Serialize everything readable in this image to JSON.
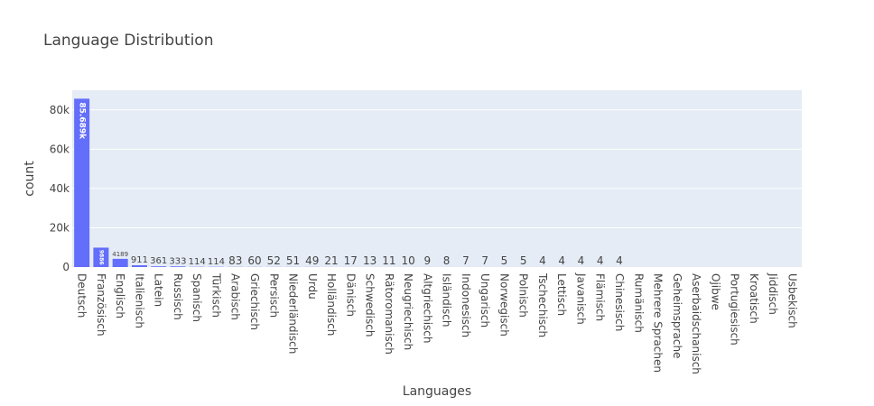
{
  "chart_data": {
    "type": "bar",
    "title": "Language Distribution",
    "xlabel": "Languages",
    "ylabel": "count",
    "ylim": [
      0,
      90000
    ],
    "yticks": [
      0,
      20000,
      40000,
      60000,
      80000
    ],
    "ytick_labels": [
      "0",
      "20k",
      "40k",
      "60k",
      "80k"
    ],
    "grid": true,
    "colors": {
      "bar": "#636efa",
      "plot_bg": "#e5ecf6",
      "grid": "#ffffff",
      "text": "#444444"
    },
    "categories": [
      "Deutsch",
      "Französisch",
      "Englisch",
      "Italienisch",
      "Latein",
      "Russisch",
      "Spanisch",
      "Türkisch",
      "Arabisch",
      "Griechisch",
      "Persisch",
      "Niederländisch",
      "Urdu",
      "Holländisch",
      "Dänisch",
      "Schwedisch",
      "Rätoromanisch",
      "Neugriechisch",
      "Altgriechisch",
      "Isländisch",
      "Indonesisch",
      "Ungarisch",
      "Norwegisch",
      "Polnisch",
      "Tschechisch",
      "Lettisch",
      "Javanisch",
      "Flämisch",
      "Chinesisch",
      "Rumänisch",
      "Mehrere Sprachen",
      "Geheimsprache",
      "Aserbaidschanisch",
      "Ojibwe",
      "Portugiesisch",
      "Kroatisch",
      "Jiddisch",
      "Usbekisch"
    ],
    "values": [
      85689,
      9886,
      4189,
      911,
      361,
      333,
      114,
      114,
      83,
      60,
      52,
      51,
      49,
      21,
      17,
      13,
      11,
      10,
      9,
      8,
      7,
      7,
      5,
      5,
      4,
      4,
      4,
      4,
      4,
      null,
      null,
      null,
      null,
      null,
      null,
      null,
      null,
      null
    ],
    "value_labels": [
      "85.689k",
      "9886",
      "4189",
      "911",
      "361",
      "333",
      "114",
      "114",
      "83",
      "60",
      "52",
      "51",
      "49",
      "21",
      "17",
      "13",
      "11",
      "10",
      "9",
      "8",
      "7",
      "7",
      "5",
      "5",
      "4",
      "4",
      "4",
      "4",
      "4",
      "",
      "",
      "",
      "",
      "",
      "",
      "",
      "",
      ""
    ]
  }
}
